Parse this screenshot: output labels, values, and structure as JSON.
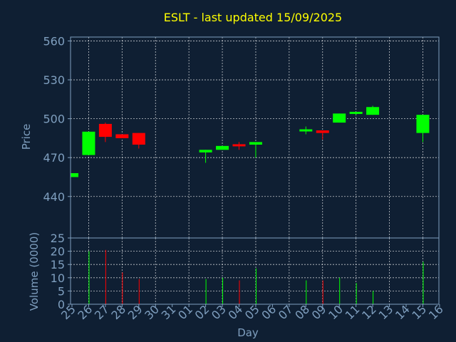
{
  "chart_data": {
    "type": "candlestick",
    "title": "ESLT - last updated 15/09/2025",
    "price_panel": {
      "ylabel": "Price",
      "ylim": [
        408,
        563
      ],
      "yticks": [
        440,
        470,
        500,
        530,
        560
      ],
      "grid": true
    },
    "volume_panel": {
      "ylabel": "Volume (0000)",
      "ylim": [
        0,
        25
      ],
      "yticks": [
        0,
        5,
        10,
        15,
        20,
        25
      ],
      "grid": true
    },
    "xlabel": "Day",
    "x_categories": [
      "25",
      "26",
      "27",
      "28",
      "29",
      "30",
      "31",
      "01",
      "02",
      "03",
      "04",
      "05",
      "06",
      "07",
      "08",
      "09",
      "10",
      "11",
      "12",
      "13",
      "14",
      "15",
      "16"
    ],
    "colors": {
      "up": "#00ff00",
      "down": "#ff0000",
      "title": "#ffff00",
      "axis": "#7f9fbf",
      "background": "#0f1f33"
    },
    "candles": [
      {
        "day": "25",
        "open": 455,
        "close": 458,
        "high": 458,
        "low": 455
      },
      {
        "day": "26",
        "open": 472,
        "close": 490,
        "high": 490,
        "low": 472
      },
      {
        "day": "27",
        "open": 496,
        "close": 486,
        "high": 497,
        "low": 482
      },
      {
        "day": "28",
        "open": 488,
        "close": 485,
        "high": 488,
        "low": 485
      },
      {
        "day": "29",
        "open": 489,
        "close": 480,
        "high": 489,
        "low": 477
      },
      {
        "day": "02",
        "open": 474,
        "close": 476,
        "high": 476,
        "low": 466
      },
      {
        "day": "03",
        "open": 476,
        "close": 479,
        "high": 479,
        "low": 476
      },
      {
        "day": "04",
        "open": 480,
        "close": 479,
        "high": 482,
        "low": 476
      },
      {
        "day": "05",
        "open": 480,
        "close": 482,
        "high": 482,
        "low": 470
      },
      {
        "day": "08",
        "open": 491,
        "close": 491,
        "high": 494,
        "low": 488
      },
      {
        "day": "09",
        "open": 491,
        "close": 489,
        "high": 491,
        "low": 484
      },
      {
        "day": "10",
        "open": 497,
        "close": 504,
        "high": 504,
        "low": 497
      },
      {
        "day": "11",
        "open": 504,
        "close": 505,
        "high": 505,
        "low": 503
      },
      {
        "day": "12",
        "open": 503,
        "close": 509,
        "high": 510,
        "low": 503
      },
      {
        "day": "15",
        "open": 489,
        "close": 503,
        "high": 503,
        "low": 482
      }
    ],
    "volume": [
      {
        "day": "25",
        "value": 0
      },
      {
        "day": "26",
        "value": 20,
        "direction": "up"
      },
      {
        "day": "27",
        "value": 20.5,
        "direction": "down"
      },
      {
        "day": "28",
        "value": 12,
        "direction": "down"
      },
      {
        "day": "29",
        "value": 9.5,
        "direction": "down"
      },
      {
        "day": "02",
        "value": 9.5,
        "direction": "up"
      },
      {
        "day": "03",
        "value": 10,
        "direction": "up"
      },
      {
        "day": "04",
        "value": 9,
        "direction": "down"
      },
      {
        "day": "05",
        "value": 13.5,
        "direction": "up"
      },
      {
        "day": "08",
        "value": 9,
        "direction": "up"
      },
      {
        "day": "09",
        "value": 9,
        "direction": "down"
      },
      {
        "day": "10",
        "value": 10,
        "direction": "up"
      },
      {
        "day": "11",
        "value": 8,
        "direction": "up"
      },
      {
        "day": "12",
        "value": 5,
        "direction": "up"
      },
      {
        "day": "15",
        "value": 16,
        "direction": "up"
      }
    ]
  }
}
